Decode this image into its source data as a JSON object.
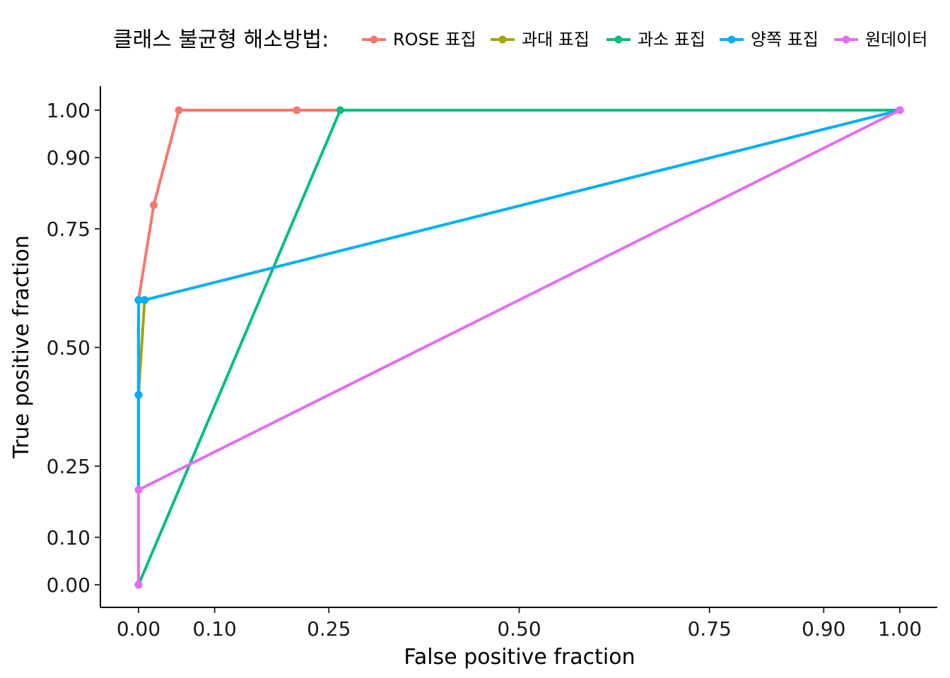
{
  "chart_data": {
    "type": "line",
    "title": "",
    "xlabel": "False positive fraction",
    "ylabel": "True positive fraction",
    "xlim": [
      0,
      1
    ],
    "ylim": [
      0,
      1
    ],
    "x_ticks": [
      0,
      0.1,
      0.25,
      0.5,
      0.75,
      0.9,
      1
    ],
    "y_ticks": [
      0,
      0.1,
      0.25,
      0.5,
      0.75,
      0.9,
      1
    ],
    "x_tick_labels": [
      "0.00",
      "0.10",
      "0.25",
      "0.50",
      "0.75",
      "0.90",
      "1.00"
    ],
    "y_tick_labels": [
      "0.00",
      "0.10",
      "0.25",
      "0.50",
      "0.75",
      "0.90",
      "1.00"
    ],
    "grid": false,
    "legend": {
      "title": "클래스 불균형 해소방법:",
      "position": "top"
    },
    "series": [
      {
        "name": "ROSE 표집",
        "color": "#F8766D",
        "x": [
          0,
          0,
          0.02,
          0.053,
          0.208,
          1
        ],
        "y": [
          0,
          0.6,
          0.8,
          1,
          1,
          1
        ]
      },
      {
        "name": "과대 표집",
        "color": "#A3A500",
        "x": [
          0,
          0,
          0.008,
          1
        ],
        "y": [
          0,
          0.4,
          0.6,
          1
        ]
      },
      {
        "name": "과소 표집",
        "color": "#00BF7D",
        "x": [
          0,
          0.265,
          1
        ],
        "y": [
          0,
          1,
          1
        ]
      },
      {
        "name": "양쪽 표집",
        "color": "#00B0F6",
        "x": [
          0,
          0,
          0,
          0.008,
          1
        ],
        "y": [
          0,
          0.4,
          0.6,
          0.6,
          1
        ]
      },
      {
        "name": "원데이터",
        "color": "#E76BF3",
        "x": [
          0,
          0,
          1
        ],
        "y": [
          0,
          0.2,
          1
        ]
      }
    ]
  }
}
